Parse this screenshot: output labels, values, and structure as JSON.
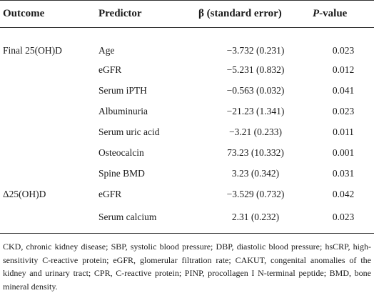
{
  "table": {
    "headers": {
      "outcome": "Outcome",
      "predictor": "Predictor",
      "beta": "β (standard error)",
      "p_italic": "P",
      "p_rest": "-value"
    },
    "rows": [
      {
        "outcome": "Final 25(OH)D",
        "predictor": "Age",
        "beta": "−3.732 (0.231)",
        "p": "0.023"
      },
      {
        "outcome": "",
        "predictor": "eGFR",
        "beta": "−5.231 (0.832)",
        "p": "0.012"
      },
      {
        "outcome": "",
        "predictor": "Serum iPTH",
        "beta": "−0.563 (0.032)",
        "p": "0.041"
      },
      {
        "outcome": "",
        "predictor": "Albuminuria",
        "beta": "−21.23 (1.341)",
        "p": "0.023"
      },
      {
        "outcome": "",
        "predictor": "Serum uric acid",
        "beta": "−3.21 (0.233)",
        "p": "0.011"
      },
      {
        "outcome": "",
        "predictor": "Osteocalcin",
        "beta": "73.23 (10.332)",
        "p": "0.001"
      },
      {
        "outcome": "",
        "predictor": "Spine BMD",
        "beta": "3.23 (0.342)",
        "p": "0.031"
      },
      {
        "outcome": "Δ25(OH)D",
        "predictor": "eGFR",
        "beta": "−3.529 (0.732)",
        "p": "0.042"
      },
      {
        "outcome": "",
        "predictor": "Serum calcium",
        "beta": "2.31 (0.232)",
        "p": "0.023"
      }
    ]
  },
  "footnote": "CKD, chronic kidney disease; SBP, systolic blood pressure; DBP, diastolic blood pressure; hsCRP, high-sensitivity C-reactive protein; eGFR, glomerular filtration rate; CAKUT, congenital anomalies of the kidney and urinary tract; CPR, C-reactive protein; PINP, procollagen I N-terminal peptide; BMD, bone mineral density."
}
